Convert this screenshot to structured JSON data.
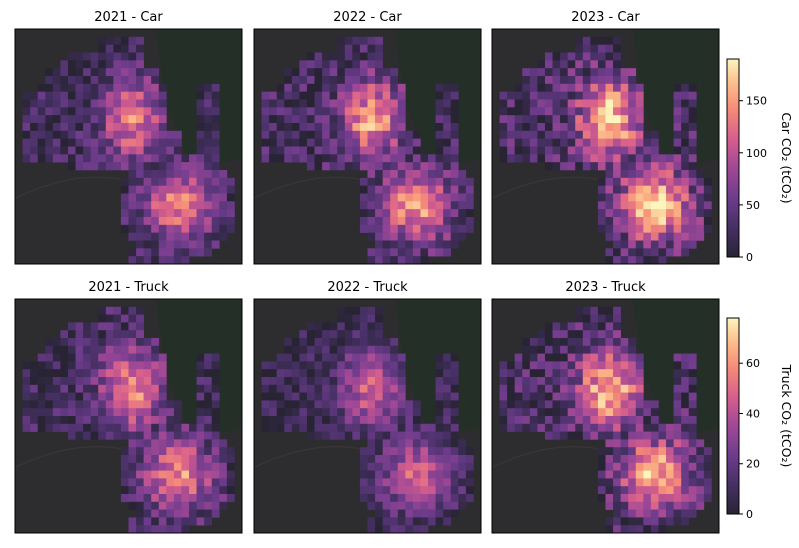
{
  "chart_data": {
    "type": "heatmap",
    "panels": [
      {
        "title": "2021 - Car",
        "vehicle": "car",
        "scale": 0.78,
        "seed": 11
      },
      {
        "title": "2022 - Car",
        "vehicle": "car",
        "scale": 0.88,
        "seed": 23
      },
      {
        "title": "2023 - Car",
        "vehicle": "car",
        "scale": 1.02,
        "seed": 37
      },
      {
        "title": "2021 - Truck",
        "vehicle": "truck",
        "scale": 0.82,
        "seed": 41
      },
      {
        "title": "2022 - Truck",
        "vehicle": "truck",
        "scale": 0.66,
        "seed": 53
      },
      {
        "title": "2023 - Truck",
        "vehicle": "truck",
        "scale": 0.98,
        "seed": 67
      }
    ],
    "colorbars": [
      {
        "vehicle": "car",
        "label": "Car CO₂ (tCO₂)",
        "range": [
          0,
          190
        ],
        "ticks": [
          "0",
          "50",
          "100",
          "150"
        ],
        "tick_values": [
          0,
          50,
          100,
          150
        ]
      },
      {
        "vehicle": "truck",
        "label": "Truck CO₂ (tCO₂)",
        "range": [
          0,
          78
        ],
        "ticks": [
          "0",
          "20",
          "40",
          "60"
        ],
        "tick_values": [
          0,
          20,
          40,
          60
        ]
      }
    ],
    "colormap": "magma-like",
    "grid_cells": 30,
    "basemap": "dark"
  }
}
